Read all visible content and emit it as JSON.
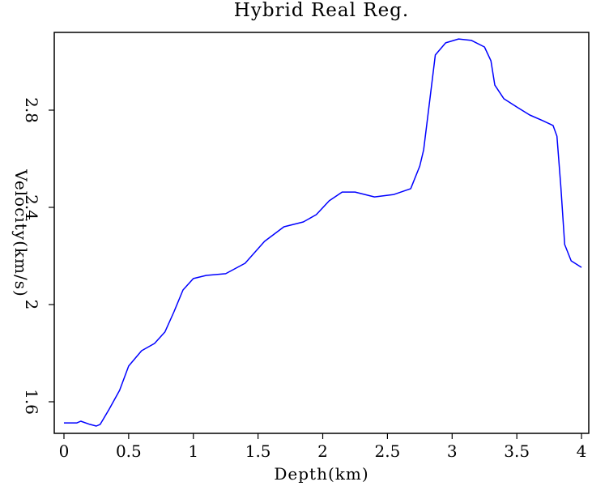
{
  "chart_data": {
    "type": "line",
    "title": "Hybrid Real Reg.",
    "x_label": "Depth(km)",
    "y_label": "Velocity(km/s)",
    "x": [
      0,
      0.1,
      0.13,
      0.2,
      0.25,
      0.28,
      0.35,
      0.43,
      0.5,
      0.6,
      0.7,
      0.78,
      0.85,
      0.92,
      1.0,
      1.1,
      1.25,
      1.4,
      1.55,
      1.7,
      1.85,
      1.95,
      2.05,
      2.15,
      2.25,
      2.4,
      2.55,
      2.68,
      2.75,
      2.78,
      2.83,
      2.87,
      2.95,
      3.05,
      3.15,
      3.25,
      3.3,
      3.33,
      3.4,
      3.5,
      3.6,
      3.7,
      3.78,
      3.81,
      3.84,
      3.87,
      3.92,
      4.0
    ],
    "values": [
      1.513,
      1.513,
      1.52,
      1.507,
      1.5,
      1.507,
      1.57,
      1.647,
      1.747,
      1.81,
      1.84,
      1.887,
      1.97,
      2.06,
      2.107,
      2.12,
      2.127,
      2.17,
      2.26,
      2.32,
      2.34,
      2.37,
      2.427,
      2.463,
      2.463,
      2.443,
      2.453,
      2.477,
      2.57,
      2.637,
      2.853,
      3.027,
      3.077,
      3.093,
      3.087,
      3.06,
      3.003,
      2.903,
      2.847,
      2.813,
      2.78,
      2.757,
      2.737,
      2.693,
      2.487,
      2.247,
      2.18,
      2.153
    ],
    "color": "#0000ff",
    "xlim": [
      -0.075,
      4.056
    ],
    "xticks": [
      0,
      0.5,
      1,
      1.5,
      2,
      2.5,
      3,
      3.5,
      4
    ],
    "ylim": [
      1.47,
      3.12
    ],
    "yticks": [
      1.6,
      2,
      2.4,
      2.8
    ]
  }
}
